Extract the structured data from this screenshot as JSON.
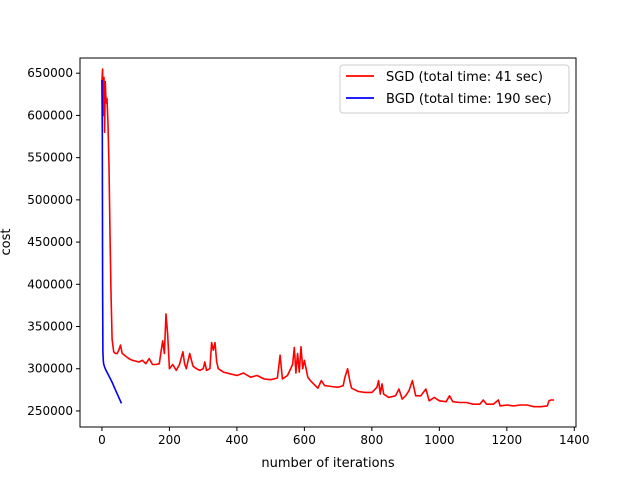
{
  "chart_data": {
    "type": "line",
    "title": "",
    "xlabel": "number of iterations",
    "ylabel": "cost",
    "xlim": [
      -65,
      1405
    ],
    "ylim": [
      231000,
      668000
    ],
    "xticks": [
      0,
      200,
      400,
      600,
      800,
      1000,
      1200,
      1400
    ],
    "yticks": [
      250000,
      300000,
      350000,
      400000,
      450000,
      500000,
      550000,
      600000,
      650000
    ],
    "grid": false,
    "legend_position": "top-right",
    "series": [
      {
        "name": "SGD (total time: 41 sec)",
        "color": "#ff0000",
        "points": [
          [
            0,
            640000
          ],
          [
            2,
            655000
          ],
          [
            4,
            600000
          ],
          [
            6,
            645000
          ],
          [
            8,
            580000
          ],
          [
            10,
            640000
          ],
          [
            12,
            615000
          ],
          [
            15,
            620000
          ],
          [
            18,
            590000
          ],
          [
            21,
            540000
          ],
          [
            24,
            460000
          ],
          [
            27,
            390000
          ],
          [
            30,
            335000
          ],
          [
            35,
            320000
          ],
          [
            40,
            318000
          ],
          [
            45,
            318000
          ],
          [
            50,
            322000
          ],
          [
            55,
            328000
          ],
          [
            60,
            318000
          ],
          [
            70,
            315000
          ],
          [
            80,
            312000
          ],
          [
            90,
            310000
          ],
          [
            100,
            309000
          ],
          [
            110,
            308000
          ],
          [
            120,
            310000
          ],
          [
            130,
            306000
          ],
          [
            140,
            312000
          ],
          [
            150,
            305000
          ],
          [
            160,
            305000
          ],
          [
            170,
            306000
          ],
          [
            175,
            320000
          ],
          [
            180,
            333000
          ],
          [
            185,
            318000
          ],
          [
            190,
            365000
          ],
          [
            195,
            340000
          ],
          [
            200,
            300000
          ],
          [
            210,
            305000
          ],
          [
            220,
            298000
          ],
          [
            230,
            305000
          ],
          [
            240,
            320000
          ],
          [
            245,
            306000
          ],
          [
            250,
            300000
          ],
          [
            260,
            318000
          ],
          [
            270,
            303000
          ],
          [
            280,
            300000
          ],
          [
            290,
            298000
          ],
          [
            300,
            300000
          ],
          [
            305,
            308000
          ],
          [
            310,
            298000
          ],
          [
            320,
            300000
          ],
          [
            325,
            331000
          ],
          [
            330,
            322000
          ],
          [
            335,
            331000
          ],
          [
            340,
            308000
          ],
          [
            345,
            300000
          ],
          [
            360,
            296000
          ],
          [
            380,
            294000
          ],
          [
            400,
            292000
          ],
          [
            420,
            295000
          ],
          [
            440,
            290000
          ],
          [
            460,
            292000
          ],
          [
            480,
            288000
          ],
          [
            500,
            287000
          ],
          [
            520,
            289000
          ],
          [
            528,
            316000
          ],
          [
            535,
            288000
          ],
          [
            550,
            292000
          ],
          [
            565,
            305000
          ],
          [
            570,
            325000
          ],
          [
            575,
            295000
          ],
          [
            580,
            318000
          ],
          [
            585,
            296000
          ],
          [
            590,
            326000
          ],
          [
            595,
            300000
          ],
          [
            600,
            310000
          ],
          [
            610,
            290000
          ],
          [
            620,
            285000
          ],
          [
            640,
            277000
          ],
          [
            650,
            286000
          ],
          [
            660,
            280000
          ],
          [
            680,
            279000
          ],
          [
            700,
            278000
          ],
          [
            715,
            280000
          ],
          [
            720,
            290000
          ],
          [
            728,
            300000
          ],
          [
            735,
            285000
          ],
          [
            740,
            277000
          ],
          [
            760,
            273000
          ],
          [
            780,
            272000
          ],
          [
            800,
            272000
          ],
          [
            815,
            278000
          ],
          [
            820,
            286000
          ],
          [
            825,
            270000
          ],
          [
            830,
            282000
          ],
          [
            835,
            270000
          ],
          [
            850,
            266000
          ],
          [
            870,
            268000
          ],
          [
            880,
            276000
          ],
          [
            890,
            264000
          ],
          [
            900,
            268000
          ],
          [
            910,
            274000
          ],
          [
            920,
            286000
          ],
          [
            930,
            268000
          ],
          [
            945,
            268000
          ],
          [
            960,
            276000
          ],
          [
            970,
            262000
          ],
          [
            985,
            266000
          ],
          [
            1000,
            262000
          ],
          [
            1020,
            261000
          ],
          [
            1030,
            268000
          ],
          [
            1040,
            261000
          ],
          [
            1060,
            260000
          ],
          [
            1080,
            260000
          ],
          [
            1100,
            258000
          ],
          [
            1120,
            258000
          ],
          [
            1130,
            263000
          ],
          [
            1140,
            258000
          ],
          [
            1160,
            258000
          ],
          [
            1175,
            263000
          ],
          [
            1180,
            256000
          ],
          [
            1200,
            257000
          ],
          [
            1220,
            256000
          ],
          [
            1240,
            257000
          ],
          [
            1260,
            257000
          ],
          [
            1280,
            255000
          ],
          [
            1300,
            255000
          ],
          [
            1320,
            256000
          ],
          [
            1325,
            262000
          ],
          [
            1330,
            263000
          ],
          [
            1340,
            263000
          ]
        ]
      },
      {
        "name": "BGD (total time: 190 sec)",
        "color": "#0000ff",
        "points": [
          [
            0,
            642000
          ],
          [
            1,
            580000
          ],
          [
            2,
            400000
          ],
          [
            3,
            320000
          ],
          [
            4,
            310000
          ],
          [
            5,
            306000
          ],
          [
            8,
            302000
          ],
          [
            12,
            298000
          ],
          [
            20,
            292000
          ],
          [
            30,
            284000
          ],
          [
            40,
            275000
          ],
          [
            50,
            266000
          ],
          [
            58,
            259000
          ]
        ]
      }
    ]
  }
}
